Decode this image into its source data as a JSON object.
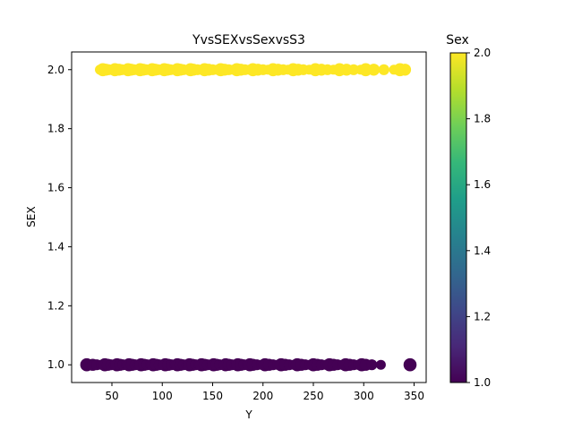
{
  "chart_data": {
    "type": "scatter",
    "title": "YvsSEXvsSexvsS3",
    "xlabel": "Y",
    "ylabel": "SEX",
    "xlim": [
      10,
      362
    ],
    "ylim": [
      0.94,
      2.06
    ],
    "x_ticks": [
      50,
      100,
      150,
      200,
      250,
      300,
      350
    ],
    "y_ticks": [
      1.0,
      1.2,
      1.4,
      1.6,
      1.8,
      2.0
    ],
    "grid": false,
    "colorbar": {
      "label": "Sex",
      "range": [
        1.0,
        2.0
      ],
      "ticks": [
        1.0,
        1.2,
        1.4,
        1.6,
        1.8,
        2.0
      ],
      "colormap": "viridis",
      "colors": [
        "#440154",
        "#482878",
        "#3e4989",
        "#31688e",
        "#26828e",
        "#1f9e89",
        "#35b779",
        "#6ece58",
        "#b5de2b",
        "#fde725"
      ]
    },
    "series": [
      {
        "color": "#fde725",
        "points": [
          {
            "x": 38,
            "y": 2
          },
          {
            "x": 41,
            "y": 2
          },
          {
            "x": 44,
            "y": 2
          },
          {
            "x": 47,
            "y": 2
          },
          {
            "x": 50,
            "y": 2
          },
          {
            "x": 53,
            "y": 2
          },
          {
            "x": 57,
            "y": 2
          },
          {
            "x": 60,
            "y": 2
          },
          {
            "x": 63,
            "y": 2
          },
          {
            "x": 66,
            "y": 2
          },
          {
            "x": 69,
            "y": 2
          },
          {
            "x": 72,
            "y": 2
          },
          {
            "x": 75,
            "y": 2
          },
          {
            "x": 78,
            "y": 2
          },
          {
            "x": 81,
            "y": 2
          },
          {
            "x": 84,
            "y": 2
          },
          {
            "x": 87,
            "y": 2
          },
          {
            "x": 90,
            "y": 2
          },
          {
            "x": 93,
            "y": 2
          },
          {
            "x": 96,
            "y": 2
          },
          {
            "x": 99,
            "y": 2
          },
          {
            "x": 102,
            "y": 2
          },
          {
            "x": 105,
            "y": 2
          },
          {
            "x": 108,
            "y": 2
          },
          {
            "x": 111,
            "y": 2
          },
          {
            "x": 115,
            "y": 2
          },
          {
            "x": 118,
            "y": 2
          },
          {
            "x": 121,
            "y": 2
          },
          {
            "x": 125,
            "y": 2
          },
          {
            "x": 128,
            "y": 2
          },
          {
            "x": 131,
            "y": 2
          },
          {
            "x": 135,
            "y": 2
          },
          {
            "x": 138,
            "y": 2
          },
          {
            "x": 142,
            "y": 2
          },
          {
            "x": 146,
            "y": 2
          },
          {
            "x": 150,
            "y": 2
          },
          {
            "x": 154,
            "y": 2
          },
          {
            "x": 158,
            "y": 2
          },
          {
            "x": 162,
            "y": 2
          },
          {
            "x": 166,
            "y": 2
          },
          {
            "x": 170,
            "y": 2
          },
          {
            "x": 174,
            "y": 2
          },
          {
            "x": 178,
            "y": 2
          },
          {
            "x": 182,
            "y": 2
          },
          {
            "x": 186,
            "y": 2
          },
          {
            "x": 190,
            "y": 2
          },
          {
            "x": 195,
            "y": 2
          },
          {
            "x": 200,
            "y": 2
          },
          {
            "x": 205,
            "y": 2
          },
          {
            "x": 210,
            "y": 2
          },
          {
            "x": 215,
            "y": 2
          },
          {
            "x": 220,
            "y": 2
          },
          {
            "x": 225,
            "y": 2
          },
          {
            "x": 230,
            "y": 2
          },
          {
            "x": 235,
            "y": 2
          },
          {
            "x": 240,
            "y": 2
          },
          {
            "x": 246,
            "y": 2
          },
          {
            "x": 252,
            "y": 2
          },
          {
            "x": 258,
            "y": 2
          },
          {
            "x": 264,
            "y": 2
          },
          {
            "x": 270,
            "y": 2
          },
          {
            "x": 276,
            "y": 2
          },
          {
            "x": 283,
            "y": 2
          },
          {
            "x": 290,
            "y": 2
          },
          {
            "x": 297,
            "y": 2
          },
          {
            "x": 302,
            "y": 2
          },
          {
            "x": 310,
            "y": 2
          },
          {
            "x": 320,
            "y": 2
          },
          {
            "x": 330,
            "y": 2
          },
          {
            "x": 336,
            "y": 2
          },
          {
            "x": 341,
            "y": 2
          }
        ]
      },
      {
        "color": "#440154",
        "points": [
          {
            "x": 25,
            "y": 1
          },
          {
            "x": 31,
            "y": 1
          },
          {
            "x": 35,
            "y": 1
          },
          {
            "x": 39,
            "y": 1
          },
          {
            "x": 43,
            "y": 1
          },
          {
            "x": 46,
            "y": 1
          },
          {
            "x": 49,
            "y": 1
          },
          {
            "x": 52,
            "y": 1
          },
          {
            "x": 55,
            "y": 1
          },
          {
            "x": 58,
            "y": 1
          },
          {
            "x": 61,
            "y": 1
          },
          {
            "x": 64,
            "y": 1
          },
          {
            "x": 67,
            "y": 1
          },
          {
            "x": 70,
            "y": 1
          },
          {
            "x": 73,
            "y": 1
          },
          {
            "x": 76,
            "y": 1
          },
          {
            "x": 79,
            "y": 1
          },
          {
            "x": 82,
            "y": 1
          },
          {
            "x": 85,
            "y": 1
          },
          {
            "x": 88,
            "y": 1
          },
          {
            "x": 91,
            "y": 1
          },
          {
            "x": 94,
            "y": 1
          },
          {
            "x": 97,
            "y": 1
          },
          {
            "x": 100,
            "y": 1
          },
          {
            "x": 103,
            "y": 1
          },
          {
            "x": 106,
            "y": 1
          },
          {
            "x": 109,
            "y": 1
          },
          {
            "x": 112,
            "y": 1
          },
          {
            "x": 115,
            "y": 1
          },
          {
            "x": 118,
            "y": 1
          },
          {
            "x": 121,
            "y": 1
          },
          {
            "x": 124,
            "y": 1
          },
          {
            "x": 127,
            "y": 1
          },
          {
            "x": 130,
            "y": 1
          },
          {
            "x": 133,
            "y": 1
          },
          {
            "x": 136,
            "y": 1
          },
          {
            "x": 139,
            "y": 1
          },
          {
            "x": 142,
            "y": 1
          },
          {
            "x": 145,
            "y": 1
          },
          {
            "x": 148,
            "y": 1
          },
          {
            "x": 151,
            "y": 1
          },
          {
            "x": 154,
            "y": 1
          },
          {
            "x": 157,
            "y": 1
          },
          {
            "x": 160,
            "y": 1
          },
          {
            "x": 163,
            "y": 1
          },
          {
            "x": 166,
            "y": 1
          },
          {
            "x": 169,
            "y": 1
          },
          {
            "x": 172,
            "y": 1
          },
          {
            "x": 175,
            "y": 1
          },
          {
            "x": 178,
            "y": 1
          },
          {
            "x": 181,
            "y": 1
          },
          {
            "x": 184,
            "y": 1
          },
          {
            "x": 187,
            "y": 1
          },
          {
            "x": 190,
            "y": 1
          },
          {
            "x": 194,
            "y": 1
          },
          {
            "x": 198,
            "y": 1
          },
          {
            "x": 202,
            "y": 1
          },
          {
            "x": 206,
            "y": 1
          },
          {
            "x": 210,
            "y": 1
          },
          {
            "x": 214,
            "y": 1
          },
          {
            "x": 218,
            "y": 1
          },
          {
            "x": 222,
            "y": 1
          },
          {
            "x": 226,
            "y": 1
          },
          {
            "x": 230,
            "y": 1
          },
          {
            "x": 234,
            "y": 1
          },
          {
            "x": 238,
            "y": 1
          },
          {
            "x": 242,
            "y": 1
          },
          {
            "x": 246,
            "y": 1
          },
          {
            "x": 250,
            "y": 1
          },
          {
            "x": 254,
            "y": 1
          },
          {
            "x": 258,
            "y": 1
          },
          {
            "x": 262,
            "y": 1
          },
          {
            "x": 266,
            "y": 1
          },
          {
            "x": 270,
            "y": 1
          },
          {
            "x": 274,
            "y": 1
          },
          {
            "x": 278,
            "y": 1
          },
          {
            "x": 282,
            "y": 1
          },
          {
            "x": 286,
            "y": 1
          },
          {
            "x": 290,
            "y": 1
          },
          {
            "x": 294,
            "y": 1
          },
          {
            "x": 298,
            "y": 1
          },
          {
            "x": 302,
            "y": 1
          },
          {
            "x": 308,
            "y": 1
          },
          {
            "x": 317,
            "y": 1
          },
          {
            "x": 346,
            "y": 1
          }
        ]
      }
    ]
  }
}
